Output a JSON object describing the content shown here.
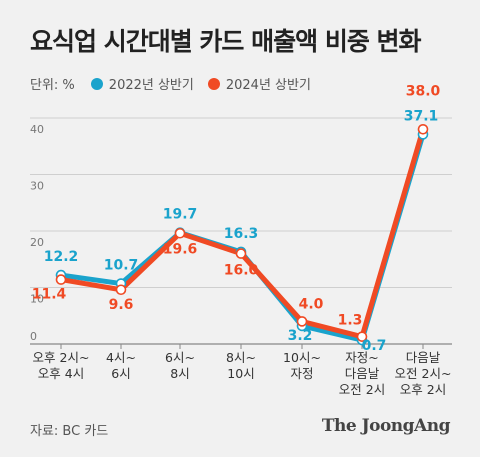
{
  "title": "요식업 시간대별 카드 매출액 비중 변화",
  "unit": "단위: %",
  "source": "자료: BC 카드",
  "brand": "The JoongAng",
  "colors": {
    "s2022": "#1aa3cc",
    "s2024": "#f04a24",
    "grid": "#cfcfcf",
    "axis": "#888"
  },
  "chart_data": {
    "type": "line",
    "title": "요식업 시간대별 카드 매출액 비중 변화",
    "ylabel": "단위: %",
    "ylim": [
      0,
      40
    ],
    "yticks": [
      "0",
      "10",
      "20",
      "30",
      "40"
    ],
    "grid": true,
    "legend_position": "top-left",
    "categories": [
      [
        "오후 2시~",
        "오후 4시"
      ],
      [
        "4시~",
        "6시"
      ],
      [
        "6시~",
        "8시"
      ],
      [
        "8시~",
        "10시"
      ],
      [
        "10시~",
        "자정"
      ],
      [
        "자정~",
        "다음날",
        "오전 2시"
      ],
      [
        "다음날",
        "오전 2시~",
        "오후 2시"
      ]
    ],
    "series": [
      {
        "name": "2022년 상반기",
        "values": [
          12.2,
          10.7,
          19.7,
          16.3,
          3.2,
          0.7,
          37.1
        ],
        "labels": [
          "12.2",
          "10.7",
          "19.7",
          "16.3",
          "3.2",
          "0.7",
          "37.1"
        ]
      },
      {
        "name": "2024년 상반기",
        "values": [
          11.4,
          9.6,
          19.6,
          16.0,
          4.0,
          1.3,
          38.0
        ],
        "labels": [
          "11.4",
          "9.6",
          "19.6",
          "16.0",
          "4.0",
          "1.3",
          "38.0"
        ]
      }
    ]
  }
}
